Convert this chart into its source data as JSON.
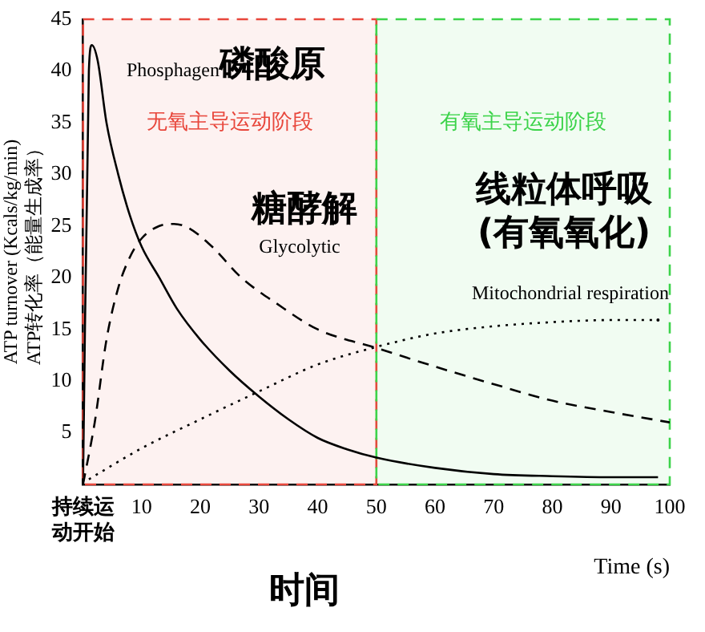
{
  "chart_data": {
    "type": "line",
    "xlabel": "Time (s)",
    "ylabel": "ATP turnover (Kcals/kg/min)\nATP转化率（能量生成率）",
    "xlim": [
      0,
      100
    ],
    "xticks": [
      {
        "value": 0,
        "label": "持续运动开始"
      },
      10,
      20,
      30,
      40,
      50,
      60,
      70,
      80,
      90,
      100
    ],
    "ylim": [
      0,
      45
    ],
    "yticks": [
      5,
      10,
      15,
      20,
      25,
      30,
      35,
      40,
      45
    ],
    "grid": false,
    "legend": false,
    "marker": "none",
    "series": [
      {
        "color": "#000000",
        "line_style": "solid",
        "x": [
          0,
          1,
          1.5,
          2.5,
          4,
          6,
          8,
          10,
          13,
          16,
          20,
          25,
          30,
          35,
          40,
          45,
          50,
          60,
          70,
          80,
          90,
          98
        ],
        "values": [
          0,
          40,
          42.5,
          41,
          35,
          30,
          26,
          23,
          20,
          17,
          14,
          11,
          8.5,
          6.3,
          4.5,
          3.4,
          2.6,
          1.6,
          1,
          0.8,
          0.7,
          0.7
        ]
      },
      {
        "color": "#000000",
        "line_style": "dashed",
        "x": [
          0,
          2,
          4,
          6,
          8,
          10,
          13,
          15.5,
          18,
          22,
          27,
          33,
          40,
          50,
          60,
          70,
          80,
          90,
          100
        ],
        "values": [
          0,
          6,
          14,
          19,
          22,
          23.8,
          25,
          25.2,
          24.8,
          23,
          20,
          17.5,
          15,
          13.2,
          11.4,
          9.7,
          8.1,
          7,
          6
        ]
      },
      {
        "color": "#000000",
        "line_style": "dotted",
        "x": [
          1,
          10,
          20,
          30,
          40,
          50,
          60,
          70,
          80,
          90,
          98
        ],
        "values": [
          0.5,
          3.5,
          6.3,
          9,
          11.6,
          13.3,
          14.6,
          15.3,
          15.7,
          15.9,
          15.9
        ]
      }
    ],
    "bands": [
      {
        "axis": "x",
        "from": 0,
        "to": 50,
        "label": "无氧主导运动阶段",
        "color": "#e8473c"
      },
      {
        "axis": "x",
        "from": 50,
        "to": 100,
        "label": "有氧主导运动阶段",
        "color": "#3cd34a"
      }
    ],
    "annotations": [
      "Phosphagen",
      "磷酸原",
      "糖酵解",
      "Glycolytic",
      "线粒体呼吸",
      "(有氧氧化)",
      "Mitochondrial respiration",
      "时间"
    ]
  }
}
